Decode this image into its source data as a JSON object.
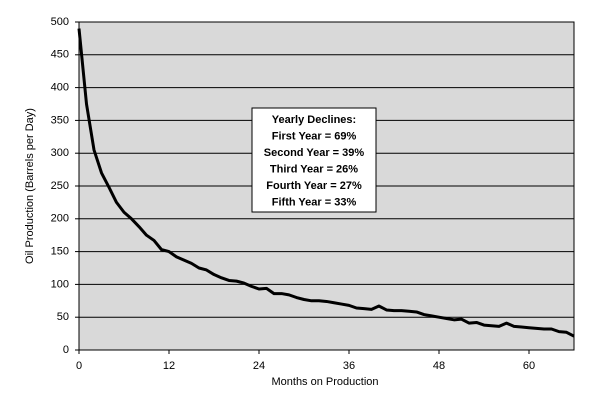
{
  "chart_data": {
    "type": "line",
    "x_label": "Months on Production",
    "y_label": "Oil Production (Barrels per Day)",
    "annotation": [
      "Yearly Declines:",
      "First Year = 69%",
      "Second Year =  39%",
      "Third Year = 26%",
      "Fourth Year = 27%",
      "Fifth Year = 33%"
    ],
    "x": [
      0,
      1,
      2,
      3,
      4,
      5,
      6,
      7,
      8,
      9,
      10,
      11,
      12,
      13,
      14,
      15,
      16,
      17,
      18,
      19,
      20,
      21,
      22,
      23,
      24,
      25,
      26,
      27,
      28,
      29,
      30,
      31,
      32,
      33,
      34,
      35,
      36,
      37,
      38,
      39,
      40,
      41,
      42,
      43,
      44,
      45,
      46,
      47,
      48,
      49,
      50,
      51,
      52,
      53,
      54,
      55,
      56,
      57,
      58,
      59,
      60,
      61,
      62,
      63,
      64,
      65,
      66
    ],
    "series": [
      {
        "color": "#000000",
        "values": [
          490,
          375,
          305,
          270,
          248,
          225,
          210,
          200,
          188,
          175,
          167,
          153,
          150,
          142,
          137,
          132,
          125,
          122,
          115,
          110,
          106,
          105,
          102,
          97,
          93,
          94,
          86,
          86,
          84,
          80,
          77,
          75,
          75,
          74,
          72,
          70,
          68,
          64,
          63,
          62,
          67,
          61,
          60,
          60,
          59,
          58,
          54,
          52,
          50,
          48,
          46,
          47,
          41,
          42,
          38,
          37,
          36,
          41,
          36,
          35,
          34,
          33,
          32,
          32,
          28,
          27,
          21
        ]
      }
    ],
    "xlim": [
      0,
      66
    ],
    "xticks": [
      0,
      12,
      24,
      36,
      48,
      60
    ],
    "ylim": [
      0,
      500
    ],
    "yticks": [
      0,
      50,
      100,
      150,
      200,
      250,
      300,
      350,
      400,
      450,
      500
    ],
    "grid": true,
    "plot_background": "#d9d9d9"
  }
}
